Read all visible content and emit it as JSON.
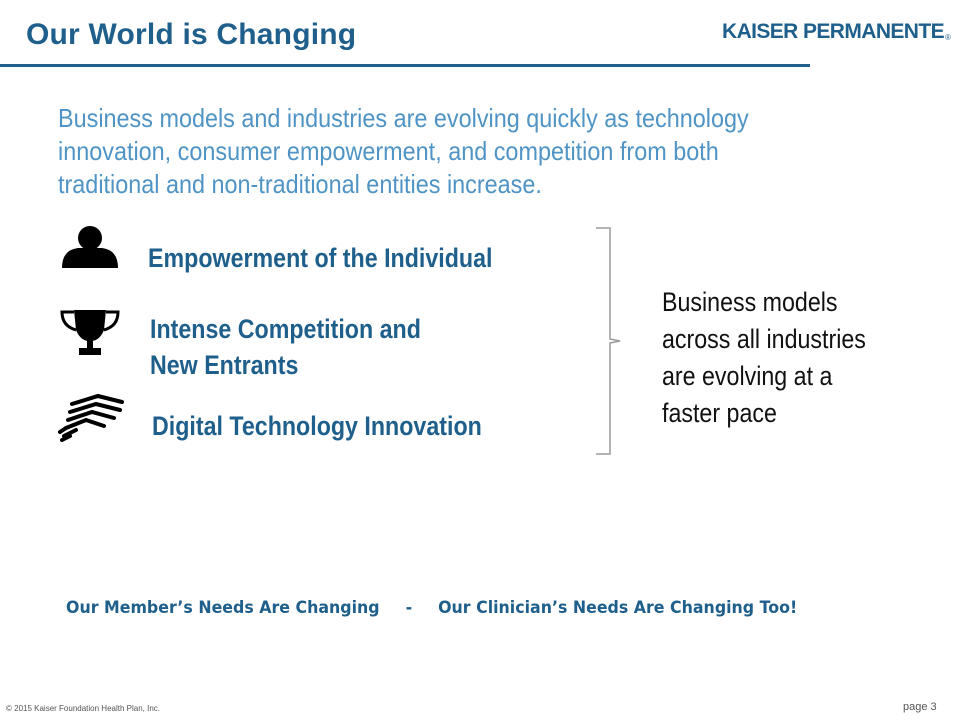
{
  "header": {
    "title": "Our World is Changing",
    "logo_text": "KAISER PERMANENTE",
    "logo_reg": "®"
  },
  "intro": "Business models and industries are evolving quickly as technology innovation, consumer empowerment, and competition from both traditional and non-traditional entities increase.",
  "items": [
    {
      "icon": "person-icon",
      "line1": "Empowerment of the Individual",
      "line2": ""
    },
    {
      "icon": "trophy-icon",
      "line1": "Intense Competition and",
      "line2": "New Entrants"
    },
    {
      "icon": "fist-icon",
      "line1": "Digital Technology Innovation",
      "line2": ""
    }
  ],
  "summary": [
    "Business models",
    "across all industries",
    "are evolving at a",
    "faster pace"
  ],
  "banner": {
    "left": "Our Member’s Needs Are Changing",
    "separator": "-",
    "right": "Our Clinician’s Needs Are Changing Too!"
  },
  "footer": {
    "copyright": "© 2015 Kaiser Foundation Health Plan, Inc.",
    "page": "page 3"
  },
  "colors": {
    "title_blue": "#1f5f8b",
    "intro_blue": "#4f94c5",
    "body_text": "#111111"
  }
}
